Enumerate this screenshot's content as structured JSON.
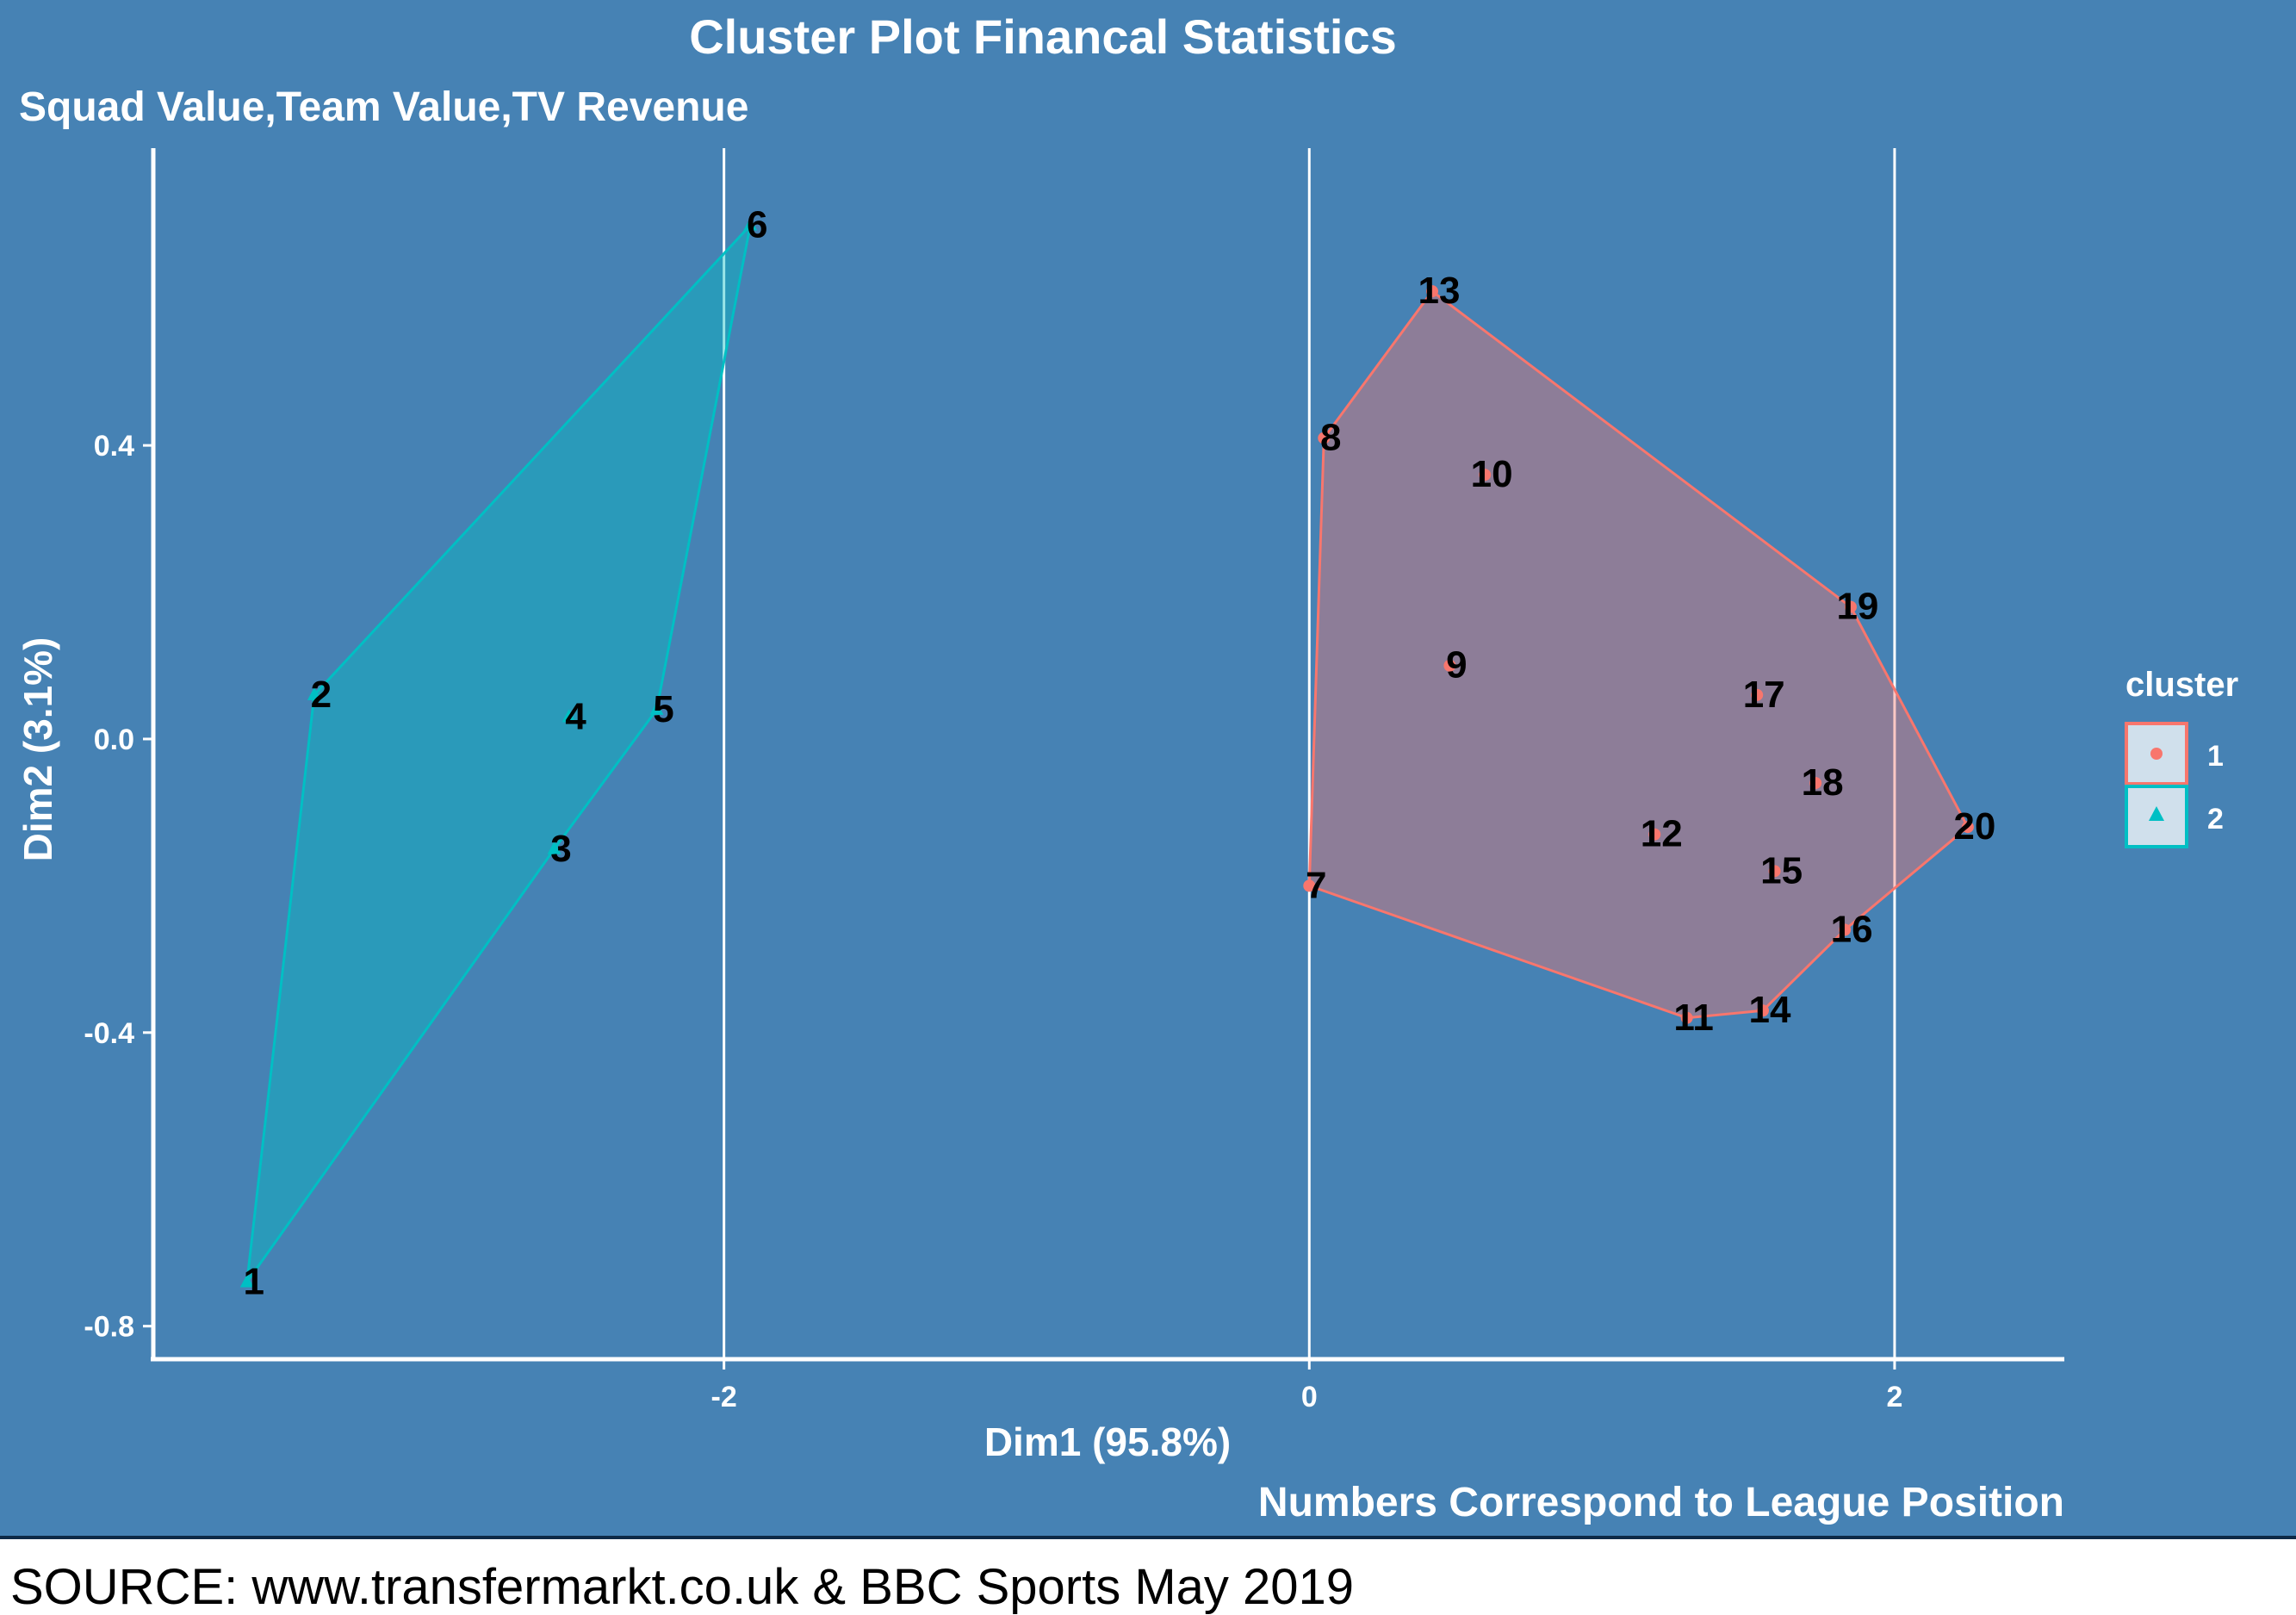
{
  "chart_data": {
    "type": "scatter",
    "title": "Cluster Plot Financal Statistics",
    "subtitle": "Squad Value,Team Value,TV Revenue",
    "xlabel": "Dim1 (95.8%)",
    "ylabel": "Dim2 (3.1%)",
    "caption": "Numbers Correspond to League Position",
    "source": "SOURCE: www.transfermarkt.co.uk & BBC Sports May 2019",
    "xlim": [
      -3.95,
      2.58
    ],
    "ylim": [
      -0.845,
      0.805
    ],
    "xticks": [
      -2,
      0,
      2
    ],
    "xtick_labels": [
      "-2",
      "0",
      "2"
    ],
    "yticks": [
      -0.8,
      -0.4,
      0.0,
      0.4
    ],
    "ytick_labels": [
      "-0.8",
      "-0.4",
      "0.0",
      "0.4"
    ],
    "vertical_lines": [
      -2,
      0,
      2
    ],
    "legend": {
      "title": "cluster",
      "placement": "right",
      "entries": [
        {
          "label": "1",
          "shape": "circle",
          "color": "#F8766D"
        },
        {
          "label": "2",
          "shape": "triangle",
          "color": "#00BFC4"
        }
      ]
    },
    "series": [
      {
        "name": "1",
        "color": "#F8766D",
        "fill": "rgba(248,118,109,0.40)",
        "hull": [
          "13",
          "19",
          "20",
          "16",
          "14",
          "11",
          "7",
          "8"
        ],
        "points": [
          {
            "label": "7",
            "x": 0.0,
            "y": -0.2
          },
          {
            "label": "8",
            "x": 0.05,
            "y": 0.41
          },
          {
            "label": "9",
            "x": 0.48,
            "y": 0.1
          },
          {
            "label": "10",
            "x": 0.6,
            "y": 0.36
          },
          {
            "label": "11",
            "x": 1.29,
            "y": -0.38
          },
          {
            "label": "12",
            "x": 1.18,
            "y": -0.13
          },
          {
            "label": "13",
            "x": 0.42,
            "y": 0.61
          },
          {
            "label": "14",
            "x": 1.55,
            "y": -0.37
          },
          {
            "label": "15",
            "x": 1.59,
            "y": -0.18
          },
          {
            "label": "16",
            "x": 1.83,
            "y": -0.26
          },
          {
            "label": "17",
            "x": 1.53,
            "y": 0.06
          },
          {
            "label": "18",
            "x": 1.73,
            "y": -0.06
          },
          {
            "label": "19",
            "x": 1.85,
            "y": 0.18
          },
          {
            "label": "20",
            "x": 2.25,
            "y": -0.12
          }
        ]
      },
      {
        "name": "2",
        "color": "#00BFC4",
        "fill": "rgba(0,191,196,0.40)",
        "hull": [
          "6",
          "5",
          "3",
          "1",
          "2"
        ],
        "points": [
          {
            "label": "1",
            "x": -3.63,
            "y": -0.74
          },
          {
            "label": "2",
            "x": -3.4,
            "y": 0.06
          },
          {
            "label": "3",
            "x": -2.58,
            "y": -0.15
          },
          {
            "label": "4",
            "x": -2.53,
            "y": 0.03
          },
          {
            "label": "5",
            "x": -2.23,
            "y": 0.04
          },
          {
            "label": "6",
            "x": -1.91,
            "y": 0.7
          }
        ]
      }
    ]
  },
  "colors": {
    "background": "#4682B4",
    "gridline": "#FFFFFF",
    "text_light": "#FFFFFF",
    "text_dark": "#000000"
  }
}
